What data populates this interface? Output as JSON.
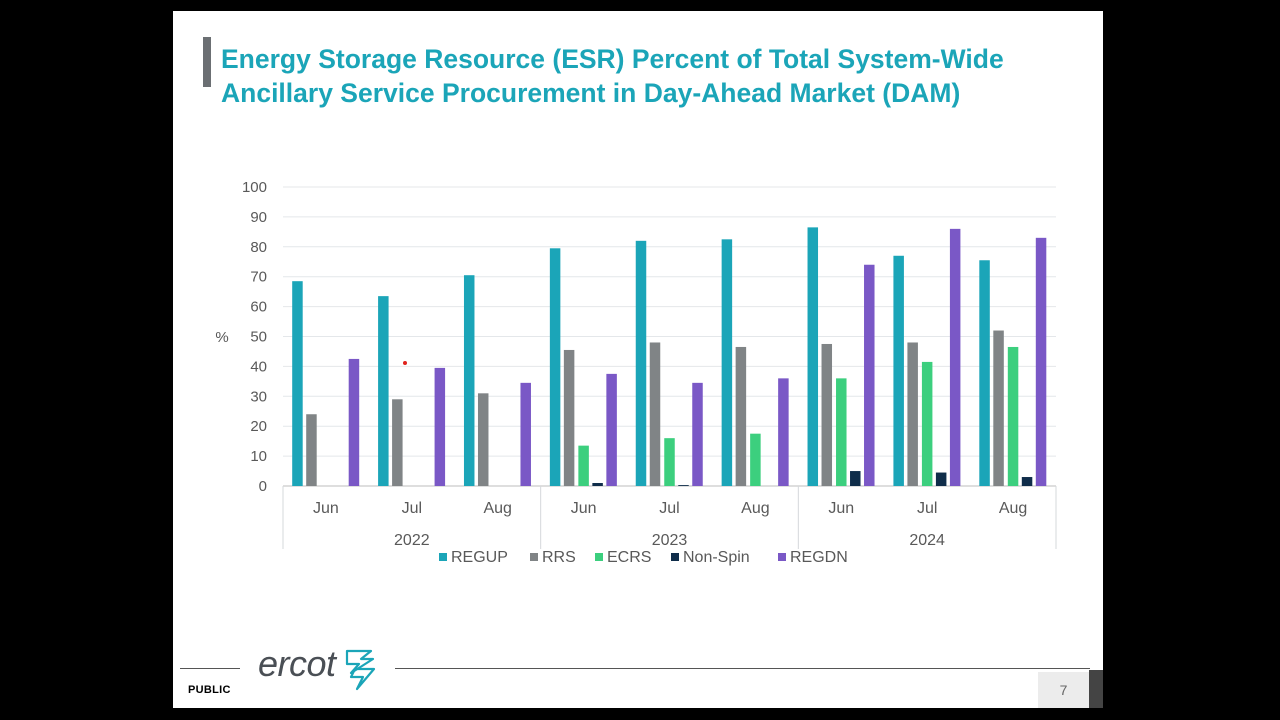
{
  "slide": {
    "title_line1": "Energy Storage Resource (ESR) Percent of Total System-Wide",
    "title_line2": "Ancillary Service Procurement in Day-Ahead Market (DAM)",
    "footer_label": "PUBLIC",
    "logo_text": "ercot",
    "page_number": "7"
  },
  "colors": {
    "title": "#1ba5b8",
    "REGUP": "#1ba5b8",
    "RRS": "#808486",
    "ECRS": "#3ccf7e",
    "Non-Spin": "#0f2d4a",
    "REGDN": "#7a58c6"
  },
  "chart_data": {
    "type": "bar",
    "ylabel": "%",
    "ylim": [
      0,
      100
    ],
    "yticks": [
      0,
      10,
      20,
      30,
      40,
      50,
      60,
      70,
      80,
      90,
      100
    ],
    "grid": true,
    "legend_position": "bottom",
    "categories": [
      "Jun",
      "Jul",
      "Aug",
      "Jun",
      "Jul",
      "Aug",
      "Jun",
      "Jul",
      "Aug"
    ],
    "groups": [
      {
        "label": "2022",
        "categories": [
          "Jun",
          "Jul",
          "Aug"
        ]
      },
      {
        "label": "2023",
        "categories": [
          "Jun",
          "Jul",
          "Aug"
        ]
      },
      {
        "label": "2024",
        "categories": [
          "Jun",
          "Jul",
          "Aug"
        ]
      }
    ],
    "series": [
      {
        "name": "REGUP",
        "values": [
          68.5,
          63.5,
          70.5,
          79.5,
          82,
          82.5,
          86.5,
          77,
          75.5
        ]
      },
      {
        "name": "RRS",
        "values": [
          24,
          29,
          31,
          45.5,
          48,
          46.5,
          47.5,
          48,
          52
        ]
      },
      {
        "name": "ECRS",
        "values": [
          0,
          0,
          0,
          13.5,
          16,
          17.5,
          36,
          41.5,
          46.5
        ]
      },
      {
        "name": "Non-Spin",
        "values": [
          0,
          0,
          0,
          1,
          0.3,
          0,
          5,
          4.5,
          3
        ]
      },
      {
        "name": "REGDN",
        "values": [
          42.5,
          39.5,
          34.5,
          37.5,
          34.5,
          36,
          74,
          86,
          83
        ]
      }
    ]
  }
}
